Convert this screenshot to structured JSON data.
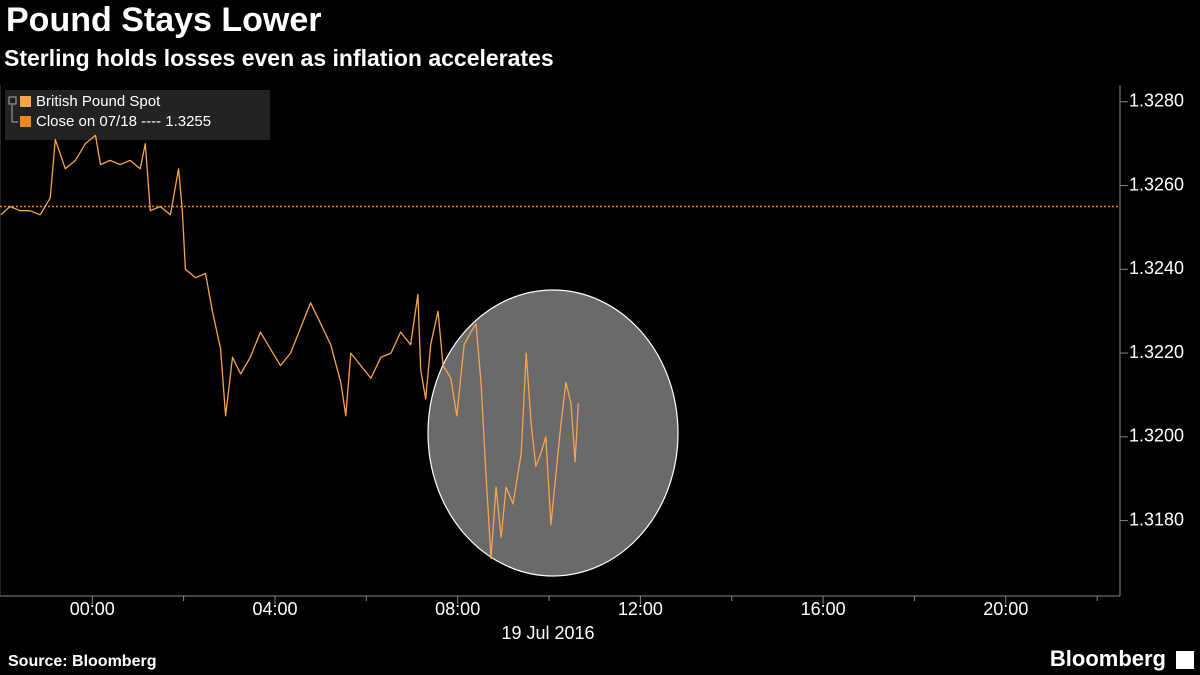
{
  "chart_data": {
    "type": "line",
    "title": "Pound Stays Lower",
    "subtitle": "Sterling holds losses even as inflation accelerates",
    "x_label": "19 Jul 2016",
    "source": "Source: Bloomberg",
    "brand": "Bloomberg",
    "x": [
      -2.0,
      -1.8,
      -1.58,
      -1.36,
      -1.14,
      -0.92,
      -0.81,
      -0.59,
      -0.37,
      -0.15,
      0.07,
      0.18,
      0.39,
      0.61,
      0.83,
      1.05,
      1.16,
      1.27,
      1.49,
      1.71,
      1.89,
      1.97,
      2.04,
      2.26,
      2.48,
      2.63,
      2.81,
      2.92,
      3.07,
      3.25,
      3.46,
      3.68,
      3.9,
      4.12,
      4.34,
      4.56,
      4.78,
      5.0,
      5.22,
      5.44,
      5.55,
      5.66,
      5.88,
      6.1,
      6.32,
      6.54,
      6.75,
      6.97,
      7.13,
      7.19,
      7.3,
      7.41,
      7.57,
      7.68,
      7.85,
      7.98,
      8.14,
      8.29,
      8.4,
      8.51,
      8.62,
      8.73,
      8.84,
      8.95,
      9.06,
      9.21,
      9.39,
      9.5,
      9.61,
      9.71,
      9.82,
      9.93,
      10.04,
      10.15,
      10.26,
      10.37,
      10.48,
      10.57,
      10.64
    ],
    "series": [
      {
        "name": "British Pound Spot",
        "color": "#f7a44c",
        "values": [
          1.3253,
          1.3255,
          1.3254,
          1.3254,
          1.3253,
          1.3257,
          1.3271,
          1.3264,
          1.3266,
          1.327,
          1.3272,
          1.3265,
          1.3266,
          1.3265,
          1.3266,
          1.3264,
          1.327,
          1.3254,
          1.3255,
          1.3253,
          1.3264,
          1.3254,
          1.324,
          1.3238,
          1.3239,
          1.323,
          1.3221,
          1.3205,
          1.3219,
          1.3215,
          1.3219,
          1.3225,
          1.3221,
          1.3217,
          1.322,
          1.3226,
          1.3232,
          1.3227,
          1.3222,
          1.3213,
          1.3205,
          1.322,
          1.3217,
          1.3214,
          1.3219,
          1.322,
          1.3225,
          1.3222,
          1.3234,
          1.3216,
          1.3209,
          1.3222,
          1.323,
          1.3217,
          1.3214,
          1.3205,
          1.3222,
          1.3225,
          1.3227,
          1.3213,
          1.3191,
          1.3171,
          1.3188,
          1.3176,
          1.3188,
          1.3184,
          1.3196,
          1.322,
          1.3203,
          1.3193,
          1.3196,
          1.32,
          1.3179,
          1.3191,
          1.3203,
          1.3213,
          1.3208,
          1.3194,
          1.3208
        ]
      }
    ],
    "reference_line": {
      "label": "Close on 07/18 ----",
      "value": 1.3255,
      "color": "#e8891a"
    },
    "xlim": [
      -2.02,
      22.5
    ],
    "xticks": [
      {
        "value": 0,
        "label": "00:00"
      },
      {
        "value": 4,
        "label": "04:00"
      },
      {
        "value": 8,
        "label": "08:00"
      },
      {
        "value": 12,
        "label": "12:00"
      },
      {
        "value": 16,
        "label": "16:00"
      },
      {
        "value": 20,
        "label": "20:00"
      }
    ],
    "xminor_ticks": [
      2,
      6,
      10,
      14,
      18,
      22
    ],
    "ylim": [
      1.3162,
      1.3284
    ],
    "yticks": [
      {
        "value": 1.318,
        "label": "1.3180"
      },
      {
        "value": 1.32,
        "label": "1.3200"
      },
      {
        "value": 1.322,
        "label": "1.3220"
      },
      {
        "value": 1.324,
        "label": "1.3240"
      },
      {
        "value": 1.326,
        "label": "1.3260"
      },
      {
        "value": 1.328,
        "label": "1.3280"
      }
    ],
    "y_axis_side": "right",
    "grid": false,
    "legend": "top-left"
  }
}
